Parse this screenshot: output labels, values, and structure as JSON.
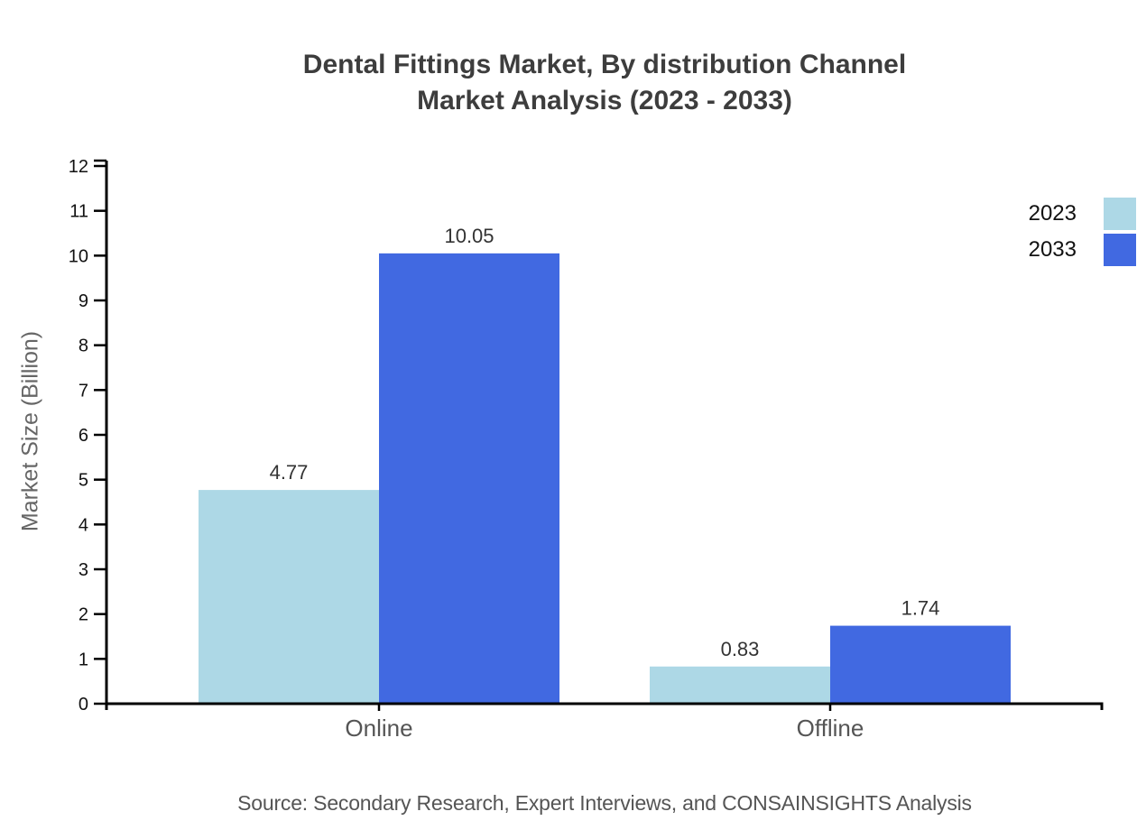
{
  "title": {
    "line1": "Dental Fittings Market, By distribution Channel",
    "line2": "Market Analysis (2023 - 2033)"
  },
  "chart_data": {
    "type": "bar",
    "categories": [
      "Online",
      "Offline"
    ],
    "series": [
      {
        "name": "2023",
        "color": "#ADD8E6",
        "values": [
          4.77,
          0.83
        ]
      },
      {
        "name": "2033",
        "color": "#4169E1",
        "values": [
          10.05,
          1.74
        ]
      }
    ],
    "value_labels": [
      [
        "4.77",
        "0.83"
      ],
      [
        "10.05",
        "1.74"
      ]
    ],
    "xlabel": "",
    "ylabel": "Market Size (Billion)",
    "ylim": [
      0,
      12
    ],
    "yticks": [
      0,
      1,
      2,
      3,
      4,
      5,
      6,
      7,
      8,
      9,
      10,
      11,
      12
    ],
    "grid": false,
    "legend_position": "top-right"
  },
  "source_note": "Source: Secondary Research, Expert Interviews, and CONSAINSIGHTS Analysis",
  "colors": {
    "background": "#ffffff",
    "axis": "#000000",
    "title_text": "#3d3d3d",
    "tick_text": "#111111",
    "category_text": "#555555",
    "value_text": "#333333",
    "ylabel_text": "#666666",
    "source_text": "#555555"
  }
}
